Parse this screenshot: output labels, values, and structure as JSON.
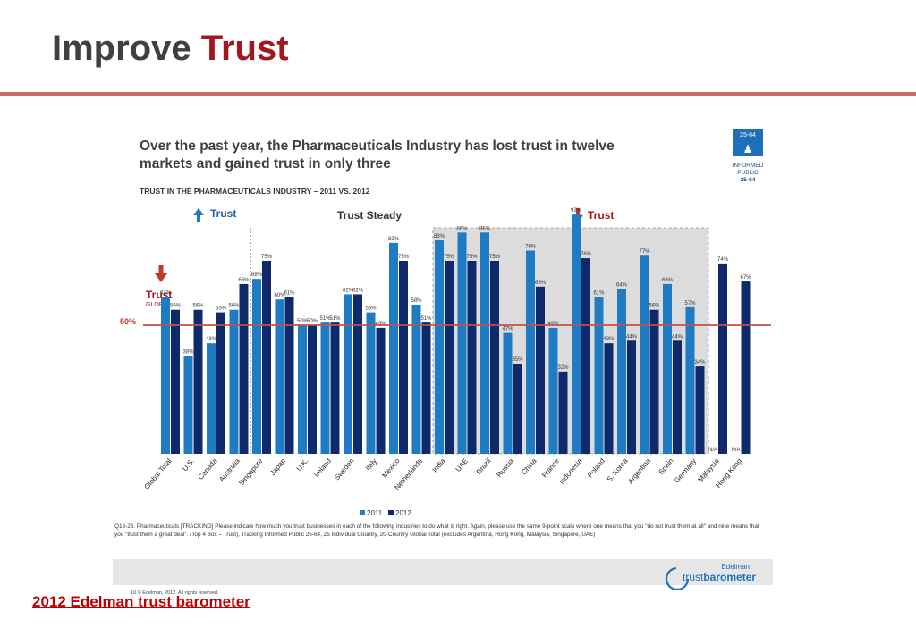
{
  "slide": {
    "title_part1": "Improve",
    "title_part2": "Trust",
    "bottom_link": "2012 Edelman trust barometer"
  },
  "chart_data": {
    "type": "bar",
    "title": "Over the past year, the Pharmaceuticals Industry has lost trust in twelve markets and gained trust in only three",
    "subtitle": "TRUST IN THE PHARMACEUTICALS INDUSTRY – 2011 VS. 2012",
    "categories": [
      "Global Total",
      "U.S.",
      "Canada",
      "Australia",
      "Singapore",
      "Japan",
      "U.K.",
      "Ireland",
      "Sweden",
      "Italy",
      "Mexico",
      "Netherlands",
      "India",
      "UAE",
      "Brazil",
      "Russia",
      "China",
      "France",
      "Indonesia",
      "Poland",
      "S. Korea",
      "Argentina",
      "Spain",
      "Germany",
      "Malaysia",
      "Hong Kong"
    ],
    "series": [
      {
        "name": "2011",
        "color": "#1f7bc4",
        "values": [
          61,
          38,
          43,
          56,
          68,
          60,
          50,
          51,
          62,
          55,
          82,
          58,
          83,
          86,
          86,
          47,
          79,
          49,
          93,
          61,
          64,
          77,
          66,
          57,
          null,
          null
        ],
        "labels": [
          "61%",
          "38%",
          "43%",
          "56%",
          "68%",
          "60%",
          "50%",
          "51%",
          "62%",
          "55%",
          "82%",
          "58%",
          "83%",
          "86%",
          "86%",
          "47%",
          "79%",
          "49%",
          "93%",
          "61%",
          "64%",
          "77%",
          "66%",
          "57%",
          "N/A",
          "N/A"
        ]
      },
      {
        "name": "2012",
        "color": "#0f2a6b",
        "values": [
          56,
          56,
          55,
          66,
          75,
          61,
          50,
          51,
          62,
          49,
          75,
          51,
          75,
          75,
          75,
          35,
          65,
          32,
          76,
          43,
          44,
          56,
          44,
          34,
          74,
          67
        ],
        "labels": [
          "56%",
          "56%",
          "55%",
          "66%",
          "75%",
          "61%",
          "50%",
          "51%",
          "62%",
          "49%",
          "75%",
          "51%",
          "75%",
          "75%",
          "75%",
          "35%",
          "65%",
          "32%",
          "76%",
          "43%",
          "44%",
          "56%",
          "44%",
          "34%",
          "74%",
          "67%"
        ]
      }
    ],
    "ylim": [
      0,
      100
    ],
    "reference_line": {
      "value": 50,
      "label": "50%",
      "color": "#c0504d"
    },
    "groups": [
      {
        "label": "Trust",
        "direction": "up",
        "from": 1,
        "to": 3
      },
      {
        "label": "Trust Steady",
        "direction": "none",
        "from": 4,
        "to": 11
      },
      {
        "label": "Trust",
        "direction": "down",
        "from": 12,
        "to": 23
      }
    ],
    "global_marker": {
      "label": "Trust",
      "sublabel": "GLOBAL"
    },
    "badge": {
      "range": "25-64",
      "line1": "INFORMED",
      "line2": "PUBLIC",
      "line3": "25-64"
    },
    "legend": {
      "position": "bottom",
      "items": [
        "2011",
        "2012"
      ]
    },
    "footnote": "Q16-26. Pharmaceuticals [TRACKING] Please indicate how much you trust businesses in each of the following industries to do what is right. Again, please use the same 9-point scale where one means that you \"do not trust them at all\" and nine means that you \"trust them a great deal\". (Top 4 Box – Trust), Tracking Informed Public 25-64, 25 Individual Country, 20-Country Global Total (excludes Argentina, Hong Kong, Malaysia, Singapore, UAE)",
    "page_footer": "10   © Edelman, 2012. All rights reserved.",
    "logo": {
      "brand": "Edelman",
      "name_light": "trust",
      "name_bold": "barometer"
    },
    "colors": {
      "up_arrow": "#1f7bc4",
      "down_arrow": "#c0392b",
      "shade": "#dcdcdc",
      "accent": "#a3161e"
    }
  }
}
